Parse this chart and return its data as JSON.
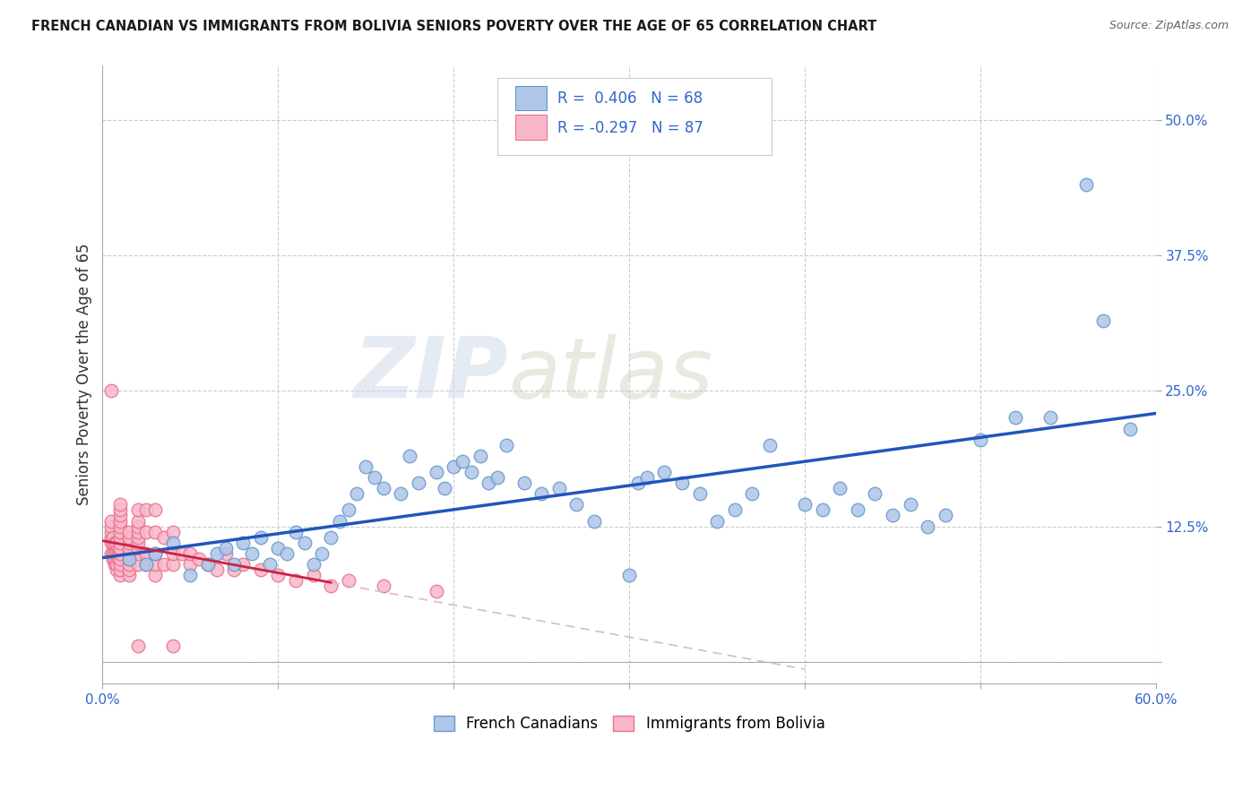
{
  "title": "FRENCH CANADIAN VS IMMIGRANTS FROM BOLIVIA SENIORS POVERTY OVER THE AGE OF 65 CORRELATION CHART",
  "source": "Source: ZipAtlas.com",
  "ylabel": "Seniors Poverty Over the Age of 65",
  "xlim": [
    0.0,
    0.6
  ],
  "ylim": [
    -0.02,
    0.55
  ],
  "xticks": [
    0.0,
    0.1,
    0.2,
    0.3,
    0.4,
    0.5,
    0.6
  ],
  "yticks": [
    0.0,
    0.125,
    0.25,
    0.375,
    0.5
  ],
  "background_color": "#ffffff",
  "grid_color": "#cccccc",
  "blue_fill": "#aec6e8",
  "blue_edge": "#6699cc",
  "pink_fill": "#f9b8c8",
  "pink_edge": "#e87090",
  "regression_blue": "#2255bb",
  "regression_pink": "#cc2244",
  "regression_pink_dash": "#ddb8c8",
  "tick_color": "#3366cc",
  "r_blue": 0.406,
  "n_blue": 68,
  "r_pink": -0.297,
  "n_pink": 87,
  "legend_label_blue": "French Canadians",
  "legend_label_pink": "Immigrants from Bolivia",
  "watermark_zip": "ZIP",
  "watermark_atlas": "atlas",
  "blue_x": [
    0.015,
    0.025,
    0.03,
    0.04,
    0.05,
    0.06,
    0.065,
    0.07,
    0.075,
    0.08,
    0.085,
    0.09,
    0.095,
    0.1,
    0.105,
    0.11,
    0.115,
    0.12,
    0.125,
    0.13,
    0.135,
    0.14,
    0.145,
    0.15,
    0.155,
    0.16,
    0.17,
    0.175,
    0.18,
    0.19,
    0.195,
    0.2,
    0.205,
    0.21,
    0.215,
    0.22,
    0.225,
    0.23,
    0.24,
    0.25,
    0.26,
    0.27,
    0.28,
    0.3,
    0.305,
    0.31,
    0.32,
    0.33,
    0.34,
    0.35,
    0.36,
    0.37,
    0.38,
    0.4,
    0.41,
    0.42,
    0.43,
    0.44,
    0.45,
    0.46,
    0.47,
    0.48,
    0.5,
    0.52,
    0.54,
    0.56,
    0.57,
    0.585
  ],
  "blue_y": [
    0.095,
    0.09,
    0.1,
    0.11,
    0.08,
    0.09,
    0.1,
    0.105,
    0.09,
    0.11,
    0.1,
    0.115,
    0.09,
    0.105,
    0.1,
    0.12,
    0.11,
    0.09,
    0.1,
    0.115,
    0.13,
    0.14,
    0.155,
    0.18,
    0.17,
    0.16,
    0.155,
    0.19,
    0.165,
    0.175,
    0.16,
    0.18,
    0.185,
    0.175,
    0.19,
    0.165,
    0.17,
    0.2,
    0.165,
    0.155,
    0.16,
    0.145,
    0.13,
    0.08,
    0.165,
    0.17,
    0.175,
    0.165,
    0.155,
    0.13,
    0.14,
    0.155,
    0.2,
    0.145,
    0.14,
    0.16,
    0.14,
    0.155,
    0.135,
    0.145,
    0.125,
    0.135,
    0.205,
    0.225,
    0.225,
    0.44,
    0.315,
    0.215
  ],
  "pink_x": [
    0.005,
    0.005,
    0.005,
    0.005,
    0.005,
    0.005,
    0.006,
    0.006,
    0.006,
    0.006,
    0.007,
    0.007,
    0.007,
    0.007,
    0.008,
    0.008,
    0.008,
    0.008,
    0.009,
    0.009,
    0.009,
    0.01,
    0.01,
    0.01,
    0.01,
    0.01,
    0.01,
    0.01,
    0.01,
    0.01,
    0.01,
    0.01,
    0.01,
    0.01,
    0.01,
    0.015,
    0.015,
    0.015,
    0.015,
    0.015,
    0.015,
    0.015,
    0.015,
    0.015,
    0.02,
    0.02,
    0.02,
    0.02,
    0.02,
    0.02,
    0.02,
    0.02,
    0.02,
    0.02,
    0.025,
    0.025,
    0.025,
    0.025,
    0.03,
    0.03,
    0.03,
    0.03,
    0.03,
    0.035,
    0.035,
    0.04,
    0.04,
    0.04,
    0.04,
    0.045,
    0.05,
    0.05,
    0.055,
    0.06,
    0.065,
    0.07,
    0.075,
    0.08,
    0.09,
    0.1,
    0.11,
    0.12,
    0.13,
    0.14,
    0.16,
    0.19,
    0.005
  ],
  "pink_y": [
    0.1,
    0.11,
    0.115,
    0.12,
    0.125,
    0.13,
    0.095,
    0.1,
    0.11,
    0.115,
    0.09,
    0.095,
    0.1,
    0.11,
    0.085,
    0.09,
    0.1,
    0.11,
    0.095,
    0.1,
    0.105,
    0.08,
    0.085,
    0.09,
    0.095,
    0.1,
    0.105,
    0.11,
    0.115,
    0.12,
    0.125,
    0.13,
    0.135,
    0.14,
    0.145,
    0.08,
    0.085,
    0.09,
    0.095,
    0.1,
    0.105,
    0.11,
    0.115,
    0.12,
    0.09,
    0.1,
    0.105,
    0.11,
    0.115,
    0.12,
    0.125,
    0.13,
    0.14,
    0.015,
    0.09,
    0.1,
    0.12,
    0.14,
    0.08,
    0.09,
    0.1,
    0.12,
    0.14,
    0.09,
    0.115,
    0.09,
    0.1,
    0.12,
    0.015,
    0.1,
    0.09,
    0.1,
    0.095,
    0.09,
    0.085,
    0.1,
    0.085,
    0.09,
    0.085,
    0.08,
    0.075,
    0.08,
    0.07,
    0.075,
    0.07,
    0.065,
    0.25
  ]
}
